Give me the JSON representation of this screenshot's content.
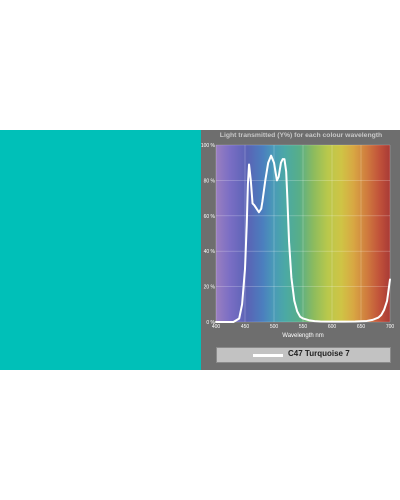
{
  "swatch": {
    "color": "#00c0b8"
  },
  "chart_data": {
    "type": "line",
    "title": "Light transmitted (Y%) for each colour wavelength",
    "xlabel": "Wavelength nm",
    "ylabel": "",
    "xlim": [
      400,
      700
    ],
    "ylim": [
      0,
      100
    ],
    "x_ticks": [
      400,
      450,
      500,
      550,
      600,
      650,
      700
    ],
    "y_ticks": [
      0,
      20,
      40,
      60,
      80,
      100
    ],
    "y_tick_labels": [
      "0 %",
      "20 %",
      "40 %",
      "60 %",
      "80 %",
      "100 %"
    ],
    "grid": true,
    "legend_position": "bottom",
    "series": [
      {
        "name": "C47 Turquoise 7",
        "color": "#ffffff",
        "x": [
          400,
          430,
          440,
          445,
          450,
          453,
          455,
          457,
          460,
          463,
          466,
          470,
          474,
          478,
          480,
          485,
          490,
          495,
          500,
          503,
          505,
          508,
          512,
          515,
          518,
          521,
          523,
          526,
          530,
          535,
          540,
          545,
          550,
          560,
          570,
          580,
          600,
          620,
          640,
          660,
          670,
          680,
          685,
          690,
          695,
          700
        ],
        "values": [
          0,
          0,
          2,
          10,
          30,
          55,
          78,
          89,
          80,
          67,
          66,
          64,
          62,
          64,
          68,
          80,
          90,
          94,
          90,
          84,
          80,
          82,
          90,
          92,
          92,
          85,
          70,
          45,
          25,
          12,
          6,
          3,
          2,
          1,
          0.5,
          0.3,
          0.2,
          0.2,
          0.3,
          0.6,
          1.2,
          2.5,
          4,
          7,
          12,
          24
        ]
      }
    ]
  }
}
